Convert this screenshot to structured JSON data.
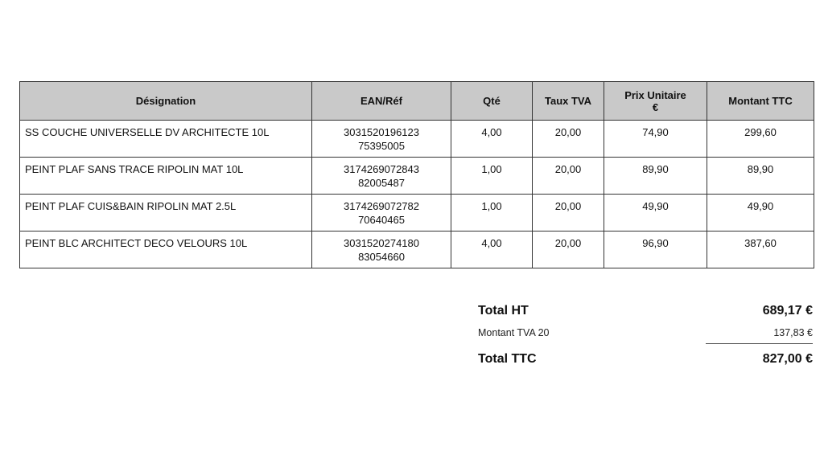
{
  "table": {
    "headers": [
      "Désignation",
      "EAN/Réf",
      "Qté",
      "Taux TVA",
      "Prix Unitaire €",
      "Montant TTC"
    ],
    "rows": [
      {
        "designation": "SS COUCHE UNIVERSELLE DV ARCHITECTE 10L",
        "ean": "3031520196123",
        "ref": "75395005",
        "qte": "4,00",
        "tva": "20,00",
        "prix": "74,90",
        "montant": "299,60"
      },
      {
        "designation": "PEINT PLAF SANS TRACE RIPOLIN MAT 10L",
        "ean": "3174269072843",
        "ref": "82005487",
        "qte": "1,00",
        "tva": "20,00",
        "prix": "89,90",
        "montant": "89,90"
      },
      {
        "designation": "PEINT PLAF CUIS&BAIN RIPOLIN MAT 2.5L",
        "ean": "3174269072782",
        "ref": "70640465",
        "qte": "1,00",
        "tva": "20,00",
        "prix": "49,90",
        "montant": "49,90"
      },
      {
        "designation": "PEINT BLC ARCHITECT DECO VELOURS 10L",
        "ean": "3031520274180",
        "ref": "83054660",
        "qte": "4,00",
        "tva": "20,00",
        "prix": "96,90",
        "montant": "387,60"
      }
    ]
  },
  "totals": {
    "ht_label": "Total HT",
    "ht_value": "689,17 €",
    "tva_label": "Montant TVA 20",
    "tva_value": "137,83 €",
    "ttc_label": "Total TTC",
    "ttc_value": "827,00 €"
  }
}
